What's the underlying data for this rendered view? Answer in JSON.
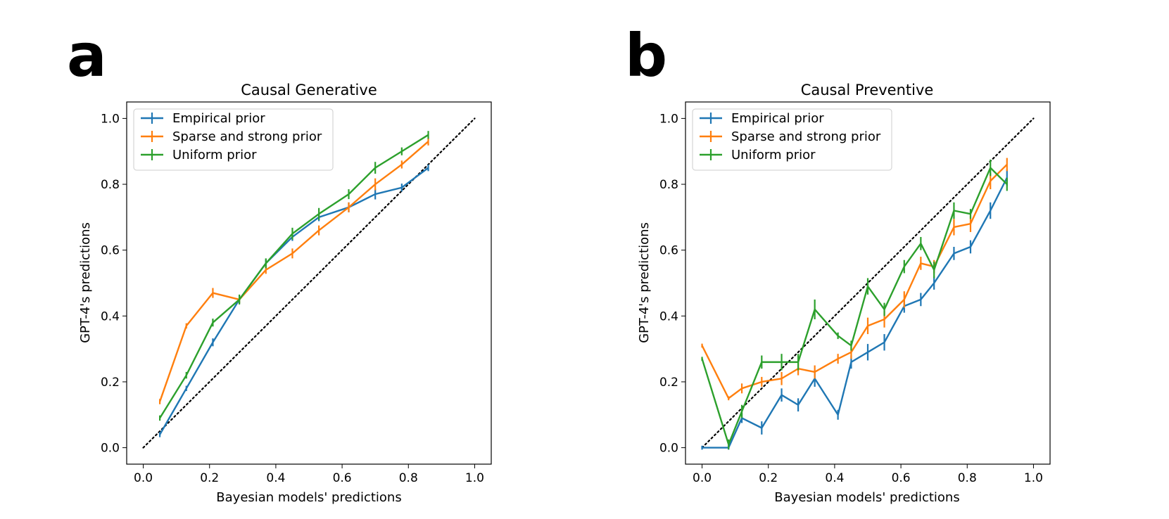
{
  "chart_data": [
    {
      "type": "line",
      "panel_label": "a",
      "title": "Causal Generative",
      "xlabel": "Bayesian models' predictions",
      "ylabel": "GPT-4's predictions",
      "xlim": [
        -0.05,
        1.05
      ],
      "ylim": [
        -0.05,
        1.05
      ],
      "xticks": [
        0.0,
        0.2,
        0.4,
        0.6,
        0.8,
        1.0
      ],
      "yticks": [
        0.0,
        0.2,
        0.4,
        0.6,
        0.8,
        1.0
      ],
      "xtick_labels": [
        "0.0",
        "0.2",
        "0.4",
        "0.6",
        "0.8",
        "1.0"
      ],
      "ytick_labels": [
        "0.0",
        "0.2",
        "0.4",
        "0.6",
        "0.8",
        "1.0"
      ],
      "legend_position": "upper-left",
      "reference_line": {
        "name": "identity",
        "style": "dotted",
        "color": "#000000",
        "x": [
          0,
          1
        ],
        "y": [
          0,
          1
        ]
      },
      "series": [
        {
          "name": "Empirical prior",
          "color": "#1f77b4",
          "x": [
            0.05,
            0.13,
            0.21,
            0.29,
            0.37,
            0.45,
            0.53,
            0.62,
            0.7,
            0.78,
            0.86
          ],
          "y": [
            0.04,
            0.18,
            0.32,
            0.45,
            0.56,
            0.64,
            0.7,
            0.73,
            0.77,
            0.79,
            0.85
          ],
          "err": [
            0.008,
            0.008,
            0.012,
            0.012,
            0.012,
            0.012,
            0.012,
            0.015,
            0.016,
            0.012,
            0.01
          ]
        },
        {
          "name": "Sparse and strong prior",
          "color": "#ff7f0e",
          "x": [
            0.05,
            0.13,
            0.21,
            0.29,
            0.37,
            0.45,
            0.53,
            0.62,
            0.7,
            0.78,
            0.86
          ],
          "y": [
            0.14,
            0.37,
            0.47,
            0.45,
            0.54,
            0.59,
            0.66,
            0.73,
            0.8,
            0.86,
            0.93
          ],
          "err": [
            0.008,
            0.008,
            0.015,
            0.012,
            0.012,
            0.015,
            0.015,
            0.015,
            0.018,
            0.012,
            0.012
          ]
        },
        {
          "name": "Uniform prior",
          "color": "#2ca02c",
          "x": [
            0.05,
            0.13,
            0.21,
            0.29,
            0.37,
            0.45,
            0.53,
            0.62,
            0.7,
            0.78,
            0.86
          ],
          "y": [
            0.09,
            0.22,
            0.38,
            0.45,
            0.56,
            0.65,
            0.71,
            0.77,
            0.85,
            0.9,
            0.95
          ],
          "err": [
            0.008,
            0.01,
            0.012,
            0.015,
            0.015,
            0.018,
            0.018,
            0.015,
            0.018,
            0.012,
            0.012
          ]
        }
      ]
    },
    {
      "type": "line",
      "panel_label": "b",
      "title": "Causal Preventive",
      "xlabel": "Bayesian models' predictions",
      "ylabel": "GPT-4's predictions",
      "xlim": [
        -0.05,
        1.05
      ],
      "ylim": [
        -0.05,
        1.05
      ],
      "xticks": [
        0.0,
        0.2,
        0.4,
        0.6,
        0.8,
        1.0
      ],
      "yticks": [
        0.0,
        0.2,
        0.4,
        0.6,
        0.8,
        1.0
      ],
      "xtick_labels": [
        "0.0",
        "0.2",
        "0.4",
        "0.6",
        "0.8",
        "1.0"
      ],
      "ytick_labels": [
        "0.0",
        "0.2",
        "0.4",
        "0.6",
        "0.8",
        "1.0"
      ],
      "legend_position": "upper-left",
      "reference_line": {
        "name": "identity",
        "style": "dotted",
        "color": "#000000",
        "x": [
          0,
          1
        ],
        "y": [
          0,
          1
        ]
      },
      "series": [
        {
          "name": "Empirical prior",
          "color": "#1f77b4",
          "x": [
            0.0,
            0.08,
            0.12,
            0.18,
            0.24,
            0.29,
            0.34,
            0.41,
            0.45,
            0.5,
            0.55,
            0.61,
            0.66,
            0.7,
            0.76,
            0.81,
            0.87,
            0.92
          ],
          "y": [
            0.0,
            0.0,
            0.09,
            0.06,
            0.16,
            0.13,
            0.21,
            0.1,
            0.26,
            0.29,
            0.32,
            0.43,
            0.45,
            0.5,
            0.59,
            0.61,
            0.72,
            0.82
          ],
          "err": [
            0.0,
            0.0,
            0.015,
            0.02,
            0.02,
            0.02,
            0.025,
            0.015,
            0.02,
            0.025,
            0.025,
            0.02,
            0.02,
            0.02,
            0.02,
            0.02,
            0.025,
            0.025
          ]
        },
        {
          "name": "Sparse and strong prior",
          "color": "#ff7f0e",
          "x": [
            0.0,
            0.08,
            0.12,
            0.18,
            0.24,
            0.29,
            0.34,
            0.41,
            0.45,
            0.5,
            0.55,
            0.61,
            0.66,
            0.7,
            0.76,
            0.81,
            0.87,
            0.92
          ],
          "y": [
            0.31,
            0.15,
            0.18,
            0.2,
            0.21,
            0.24,
            0.23,
            0.27,
            0.29,
            0.37,
            0.39,
            0.45,
            0.56,
            0.55,
            0.67,
            0.68,
            0.81,
            0.86
          ],
          "err": [
            0.0,
            0.0,
            0.015,
            0.015,
            0.02,
            0.02,
            0.02,
            0.015,
            0.02,
            0.025,
            0.025,
            0.025,
            0.02,
            0.02,
            0.025,
            0.025,
            0.025,
            0.02
          ]
        },
        {
          "name": "Uniform prior",
          "color": "#2ca02c",
          "x": [
            0.0,
            0.08,
            0.12,
            0.18,
            0.24,
            0.29,
            0.34,
            0.41,
            0.45,
            0.5,
            0.55,
            0.61,
            0.66,
            0.7,
            0.76,
            0.81,
            0.87,
            0.92
          ],
          "y": [
            0.27,
            0.01,
            0.11,
            0.26,
            0.26,
            0.26,
            0.42,
            0.34,
            0.31,
            0.49,
            0.42,
            0.55,
            0.62,
            0.54,
            0.72,
            0.71,
            0.85,
            0.8
          ],
          "err": [
            0.0,
            0.015,
            0.02,
            0.02,
            0.025,
            0.025,
            0.03,
            0.01,
            0.015,
            0.025,
            0.02,
            0.02,
            0.02,
            0.025,
            0.025,
            0.015,
            0.025,
            0.02
          ]
        }
      ]
    }
  ]
}
